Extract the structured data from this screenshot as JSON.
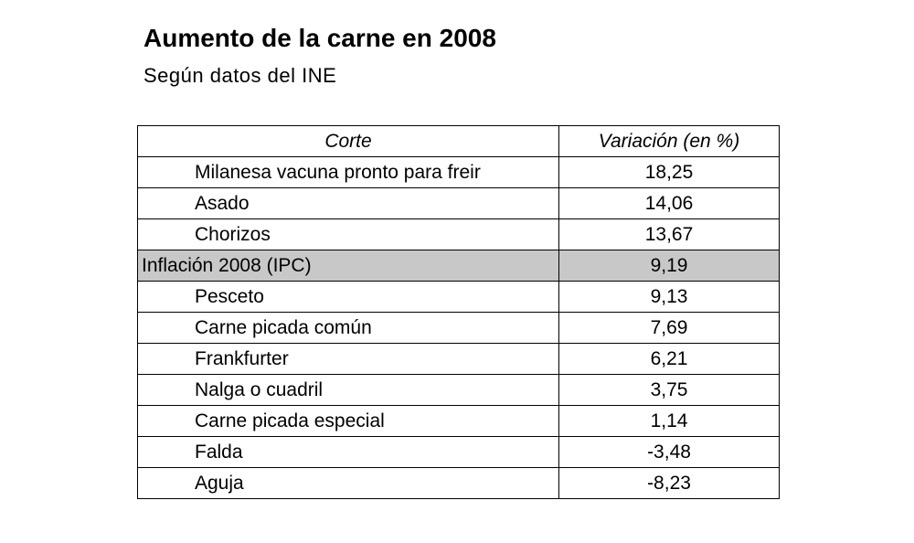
{
  "header": {
    "title": "Aumento de la carne en 2008",
    "subtitle": "Según datos del INE"
  },
  "table": {
    "columns": [
      "Corte",
      "Variación (en %)"
    ],
    "rows": [
      [
        "Milanesa vacuna pronto para freir",
        "18,25"
      ],
      [
        "Asado",
        "14,06"
      ],
      [
        "Chorizos",
        "13,67"
      ],
      [
        "Inflación 2008 (IPC)",
        "9,19"
      ],
      [
        "Pesceto",
        "9,13"
      ],
      [
        "Carne picada común",
        "7,69"
      ],
      [
        "Frankfurter",
        "6,21"
      ],
      [
        "Nalga o cuadril",
        "3,75"
      ],
      [
        "Carne picada especial",
        "1,14"
      ],
      [
        "Falda",
        "-3,48"
      ],
      [
        "Aguja",
        "-8,23"
      ]
    ],
    "highlighted_row": 3
  }
}
